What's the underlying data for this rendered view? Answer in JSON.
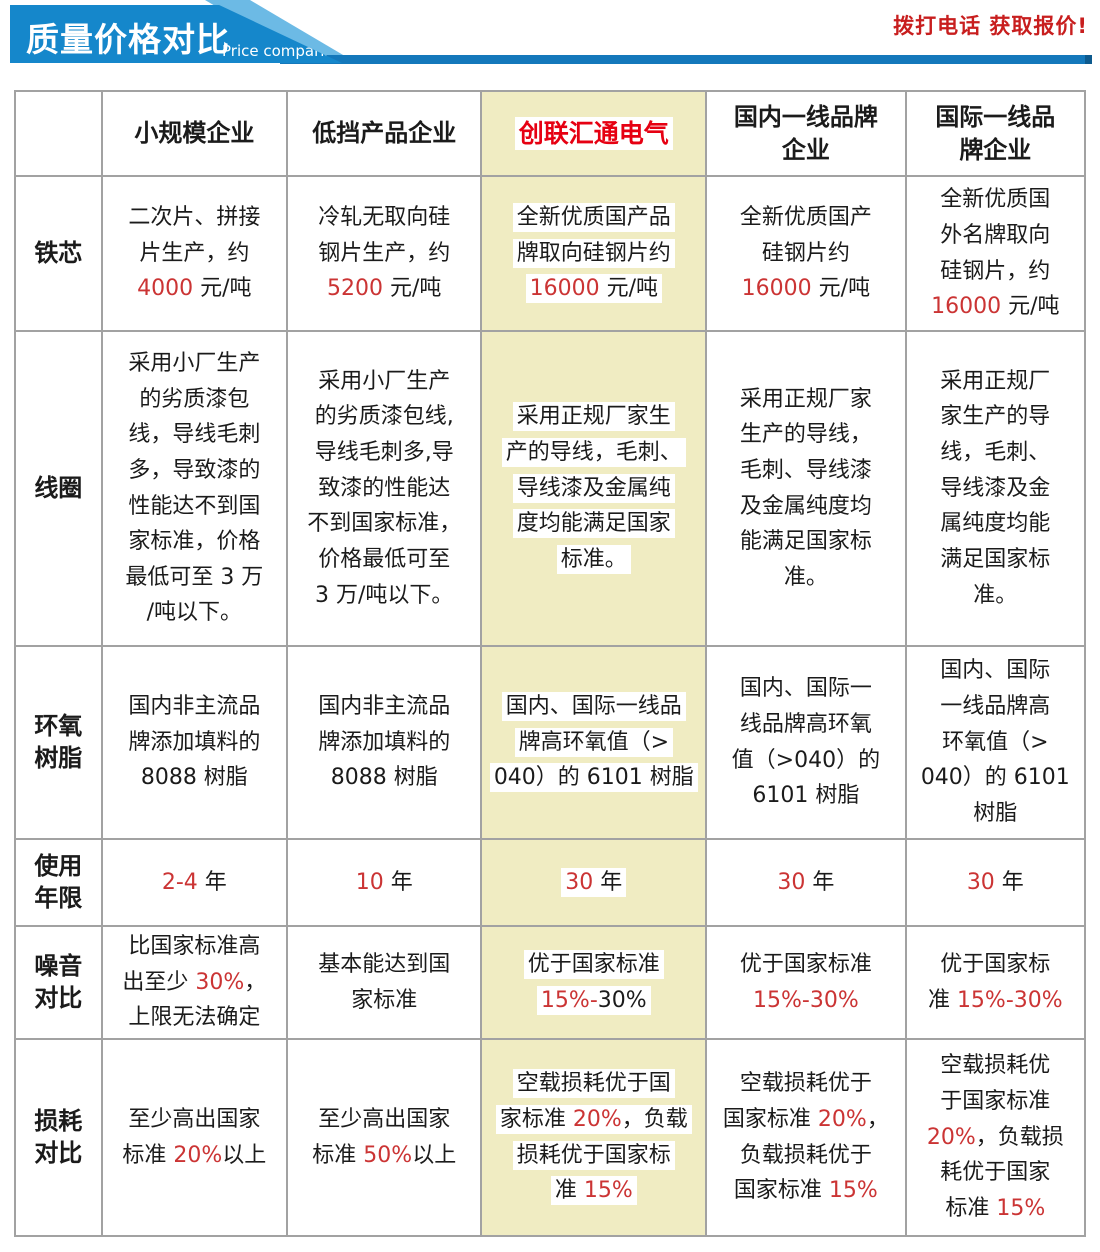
{
  "banner": {
    "title": "质量价格对比",
    "subtitle": "Price comparison"
  },
  "cta": "拨打电话 获取报价!",
  "colors": {
    "banner_blue": "#1587cb",
    "banner_accent_blue": "#6cbae5",
    "underline_blue": "#1478bb",
    "cta_red": "#c81e1e",
    "brand_red": "#e60012",
    "value_red": "#cb3434",
    "highlight_column_yellow": "#f0ecc2",
    "grid_gray": "#a2a2a2"
  },
  "table": {
    "columns": [
      "",
      "小规模企业",
      "低挡产品企业",
      "创联汇通电气",
      "国内一线品牌\n企业",
      "国际一线品\n牌企业"
    ],
    "highlight_column": 3,
    "rows": [
      {
        "label": "铁芯",
        "cells": [
          [
            {
              "t": "二次片、拼接\n片生产，约\n"
            },
            {
              "t": "4000",
              "r": true
            },
            {
              "t": " 元/吨"
            }
          ],
          [
            {
              "t": "冷轧无取向硅\n钢片生产，约\n"
            },
            {
              "t": "5200",
              "r": true
            },
            {
              "t": " 元/吨"
            }
          ],
          [
            {
              "t": "全新优质国产品\n牌取向硅钢片约\n"
            },
            {
              "t": "16000",
              "r": true
            },
            {
              "t": " 元/吨"
            }
          ],
          [
            {
              "t": "全新优质国产\n硅钢片约\n"
            },
            {
              "t": "16000",
              "r": true
            },
            {
              "t": " 元/吨"
            }
          ],
          [
            {
              "t": "全新优质国\n外名牌取向\n硅钢片，约\n"
            },
            {
              "t": "16000",
              "r": true
            },
            {
              "t": " 元/吨"
            }
          ]
        ]
      },
      {
        "label": "线圈",
        "cells": [
          [
            {
              "t": "采用小厂生产\n的劣质漆包\n线，导线毛刺\n多，导致漆的\n性能达不到国\n家标准，价格\n最低可至 3 万\n/吨以下。"
            }
          ],
          [
            {
              "t": "采用小厂生产\n的劣质漆包线,\n导线毛刺多,导\n致漆的性能达\n不到国家标准，\n价格最低可至\n3 万/吨以下。"
            }
          ],
          [
            {
              "t": "采用正规厂家生\n产的导线，毛刺、\n导线漆及金属纯\n度均能满足国家\n标准。"
            }
          ],
          [
            {
              "t": "采用正规厂家\n生产的导线，\n毛刺、导线漆\n及金属纯度均\n能满足国家标\n准。"
            }
          ],
          [
            {
              "t": "采用正规厂\n家生产的导\n线，毛刺、\n导线漆及金\n属纯度均能\n满足国家标\n准。"
            }
          ]
        ]
      },
      {
        "label": "环氧\n树脂",
        "cells": [
          [
            {
              "t": "国内非主流品\n牌添加填料的\n8088 树脂"
            }
          ],
          [
            {
              "t": "国内非主流品\n牌添加填料的\n8088 树脂"
            }
          ],
          [
            {
              "t": "国内、国际一线品\n牌高环氧值（>\n040）的 6101 树脂"
            }
          ],
          [
            {
              "t": "国内、国际一\n线品牌高环氧\n值（>040）的\n6101 树脂"
            }
          ],
          [
            {
              "t": "国内、国际\n一线品牌高\n环氧值（>\n040）的 6101\n树脂"
            }
          ]
        ]
      },
      {
        "label": "使用\n年限",
        "cells": [
          [
            {
              "t": "2-4",
              "r": true
            },
            {
              "t": " 年"
            }
          ],
          [
            {
              "t": "10",
              "r": true
            },
            {
              "t": " 年"
            }
          ],
          [
            {
              "t": "30",
              "r": true
            },
            {
              "t": " 年"
            }
          ],
          [
            {
              "t": "30",
              "r": true
            },
            {
              "t": " 年"
            }
          ],
          [
            {
              "t": "30",
              "r": true
            },
            {
              "t": " 年"
            }
          ]
        ]
      },
      {
        "label": "噪音\n对比",
        "cells": [
          [
            {
              "t": "比国家标准高\n出至少 "
            },
            {
              "t": "30%",
              "r": true
            },
            {
              "t": "，\n上限无法确定"
            }
          ],
          [
            {
              "t": "基本能达到国\n家标准"
            }
          ],
          [
            {
              "t": "优于国家标准\n"
            },
            {
              "t": "15%-",
              "r": true
            },
            {
              "t": "30%"
            }
          ],
          [
            {
              "t": "优于国家标准\n"
            },
            {
              "t": "15%-30%",
              "r": true
            }
          ],
          [
            {
              "t": "优于国家标\n准 "
            },
            {
              "t": "15%-30%",
              "r": true
            }
          ]
        ]
      },
      {
        "label": "损耗\n对比",
        "cells": [
          [
            {
              "t": "至少高出国家\n标准 "
            },
            {
              "t": "20%",
              "r": true
            },
            {
              "t": "以上"
            }
          ],
          [
            {
              "t": "至少高出国家\n标准 "
            },
            {
              "t": "50%",
              "r": true
            },
            {
              "t": "以上"
            }
          ],
          [
            {
              "t": "空载损耗优于国\n家标准 "
            },
            {
              "t": "20%",
              "r": true
            },
            {
              "t": "，负载\n损耗优于国家标\n准 "
            },
            {
              "t": "15%",
              "r": true
            }
          ],
          [
            {
              "t": "空载损耗优于\n国家标准 "
            },
            {
              "t": "20%",
              "r": true
            },
            {
              "t": "，\n负载损耗优于\n国家标准 "
            },
            {
              "t": "15%",
              "r": true
            }
          ],
          [
            {
              "t": "空载损耗优\n于国家标准\n"
            },
            {
              "t": "20%",
              "r": true
            },
            {
              "t": "，负载损\n耗优于国家\n标准 "
            },
            {
              "t": "15%",
              "r": true
            }
          ]
        ]
      }
    ]
  }
}
